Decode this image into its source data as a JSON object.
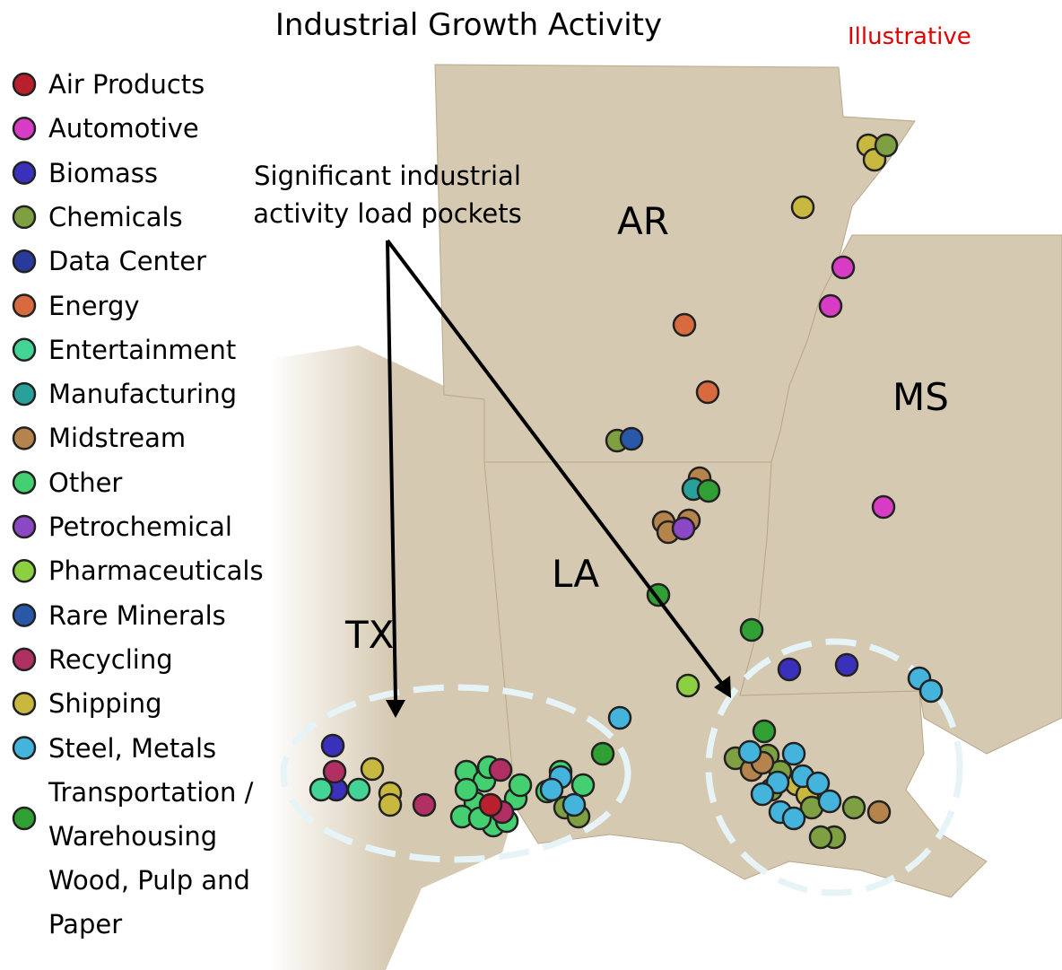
{
  "title": "Industrial Growth Activity",
  "badge": "Illustrative",
  "annotation": "Significant industrial activity load pockets",
  "states": [
    "AR",
    "MS",
    "LA",
    "TX"
  ],
  "legend": [
    {
      "name": "Air Products",
      "color": "#b8202e"
    },
    {
      "name": "Automotive",
      "color": "#d83cc4"
    },
    {
      "name": "Biomass",
      "color": "#3a30bc"
    },
    {
      "name": "Chemicals",
      "color": "#7ea042"
    },
    {
      "name": "Data Center",
      "color": "#2a3a9c"
    },
    {
      "name": "Energy",
      "color": "#d86a40"
    },
    {
      "name": "Entertainment",
      "color": "#44d496"
    },
    {
      "name": "Manufacturing",
      "color": "#2aa09a"
    },
    {
      "name": "Midstream",
      "color": "#b4844c"
    },
    {
      "name": "Other",
      "color": "#44d070"
    },
    {
      "name": "Petrochemical",
      "color": "#8a48c4"
    },
    {
      "name": "Pharmaceuticals",
      "color": "#8cd042"
    },
    {
      "name": "Rare Minerals",
      "color": "#2a58a8"
    },
    {
      "name": "Recycling",
      "color": "#b03064"
    },
    {
      "name": "Shipping",
      "color": "#c8b840"
    },
    {
      "name": "Steel, Metals",
      "color": "#44b4dc"
    },
    {
      "name": "Transportation / Warehousing",
      "color": "#30a034"
    },
    {
      "name": "Wood, Pulp and Paper"
    }
  ]
}
